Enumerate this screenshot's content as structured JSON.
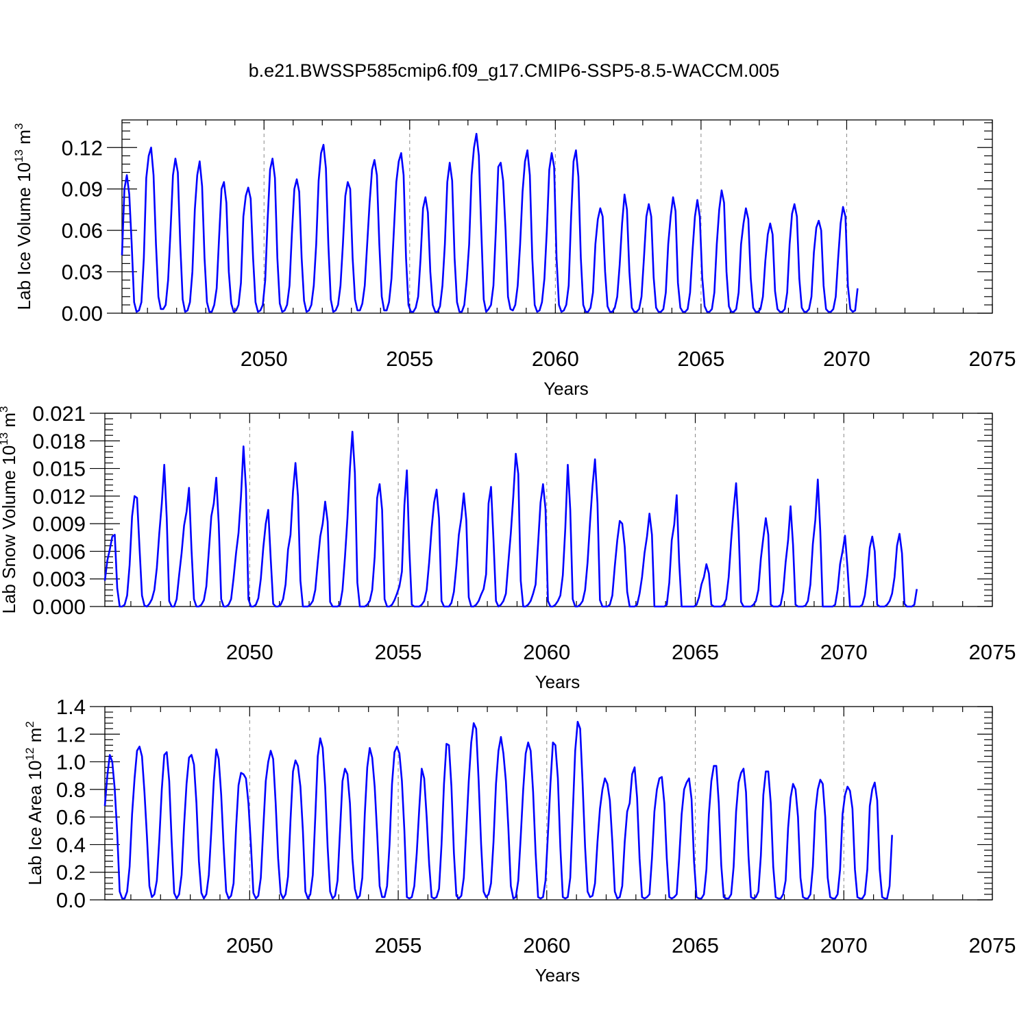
{
  "title": "b.e21.BWSSP585cmip6.f09_g17.CMIP6-SSP5-8.5-WACCM.005",
  "colors": {
    "line": "#0000ff",
    "axis": "#000000",
    "grid": "#888888"
  },
  "chart_data": [
    {
      "type": "line",
      "name": "ice-volume",
      "ylabel": "Lab Ice Volume 10",
      "ylabel_exp": "13",
      "ylabel_unit": " m",
      "ylabel_unit_exp": "3",
      "xlabel": "Years",
      "xlim": [
        2045.125,
        2075.0
      ],
      "ylim": [
        0.0,
        0.14
      ],
      "yticks": [
        0.0,
        0.03,
        0.06,
        0.09,
        0.12
      ],
      "ytick_labels": [
        "0.00",
        "0.03",
        "0.06",
        "0.09",
        "0.12"
      ],
      "xticks": [
        2050,
        2055,
        2060,
        2065,
        2070,
        2075
      ],
      "xtick_labels": [
        "2050",
        "2055",
        "2060",
        "2065",
        "2070",
        "2075"
      ],
      "start": 2045.125,
      "step": 0.08333,
      "values": [
        0.042,
        0.09,
        0.1,
        0.086,
        0.05,
        0.008,
        0.001,
        0.002,
        0.008,
        0.04,
        0.098,
        0.114,
        0.12,
        0.1,
        0.05,
        0.012,
        0.003,
        0.003,
        0.006,
        0.024,
        0.06,
        0.1,
        0.112,
        0.102,
        0.05,
        0.01,
        0.001,
        0.002,
        0.008,
        0.03,
        0.075,
        0.1,
        0.11,
        0.092,
        0.04,
        0.008,
        0.001,
        0.001,
        0.006,
        0.018,
        0.055,
        0.09,
        0.095,
        0.08,
        0.03,
        0.007,
        0.001,
        0.002,
        0.006,
        0.022,
        0.07,
        0.085,
        0.091,
        0.083,
        0.04,
        0.008,
        0.001,
        0.002,
        0.006,
        0.024,
        0.068,
        0.104,
        0.112,
        0.098,
        0.04,
        0.007,
        0.001,
        0.002,
        0.006,
        0.02,
        0.058,
        0.09,
        0.097,
        0.088,
        0.04,
        0.009,
        0.001,
        0.002,
        0.006,
        0.02,
        0.05,
        0.096,
        0.116,
        0.122,
        0.105,
        0.05,
        0.01,
        0.001,
        0.002,
        0.006,
        0.02,
        0.05,
        0.085,
        0.095,
        0.09,
        0.04,
        0.01,
        0.002,
        0.002,
        0.007,
        0.02,
        0.05,
        0.08,
        0.104,
        0.111,
        0.1,
        0.05,
        0.012,
        0.002,
        0.002,
        0.008,
        0.025,
        0.06,
        0.095,
        0.11,
        0.116,
        0.1,
        0.04,
        0.006,
        0.001,
        0.001,
        0.004,
        0.012,
        0.04,
        0.076,
        0.084,
        0.073,
        0.03,
        0.006,
        0.001,
        0.001,
        0.005,
        0.02,
        0.05,
        0.095,
        0.109,
        0.096,
        0.04,
        0.008,
        0.001,
        0.001,
        0.006,
        0.024,
        0.05,
        0.1,
        0.12,
        0.13,
        0.114,
        0.06,
        0.01,
        0.001,
        0.003,
        0.006,
        0.02,
        0.06,
        0.106,
        0.109,
        0.096,
        0.06,
        0.012,
        0.003,
        0.002,
        0.006,
        0.02,
        0.05,
        0.088,
        0.11,
        0.118,
        0.1,
        0.04,
        0.006,
        0.001,
        0.002,
        0.008,
        0.025,
        0.06,
        0.104,
        0.116,
        0.106,
        0.04,
        0.006,
        0.001,
        0.002,
        0.006,
        0.02,
        0.07,
        0.11,
        0.118,
        0.099,
        0.04,
        0.006,
        0.001,
        0.001,
        0.004,
        0.015,
        0.05,
        0.068,
        0.076,
        0.07,
        0.03,
        0.005,
        0.001,
        0.001,
        0.004,
        0.012,
        0.035,
        0.065,
        0.086,
        0.075,
        0.03,
        0.004,
        0.001,
        0.001,
        0.003,
        0.012,
        0.04,
        0.07,
        0.079,
        0.07,
        0.026,
        0.004,
        0.001,
        0.001,
        0.003,
        0.015,
        0.05,
        0.07,
        0.084,
        0.074,
        0.022,
        0.004,
        0.001,
        0.001,
        0.003,
        0.015,
        0.045,
        0.07,
        0.082,
        0.07,
        0.026,
        0.005,
        0.001,
        0.001,
        0.003,
        0.015,
        0.05,
        0.075,
        0.089,
        0.08,
        0.03,
        0.005,
        0.001,
        0.001,
        0.003,
        0.015,
        0.05,
        0.065,
        0.076,
        0.068,
        0.025,
        0.004,
        0.001,
        0.001,
        0.003,
        0.012,
        0.038,
        0.057,
        0.065,
        0.057,
        0.016,
        0.003,
        0.001,
        0.001,
        0.003,
        0.015,
        0.05,
        0.072,
        0.079,
        0.07,
        0.025,
        0.004,
        0.001,
        0.001,
        0.003,
        0.012,
        0.044,
        0.062,
        0.067,
        0.06,
        0.02,
        0.003,
        0.001,
        0.001,
        0.003,
        0.012,
        0.04,
        0.065,
        0.077,
        0.07,
        0.02,
        0.003,
        0.001,
        0.002,
        0.018
      ]
    },
    {
      "type": "line",
      "name": "snow-volume",
      "ylabel": "Lab Snow Volume 10",
      "ylabel_exp": "13",
      "ylabel_unit": " m",
      "ylabel_unit_exp": "3",
      "xlabel": "Years",
      "xlim": [
        2045.125,
        2075.0
      ],
      "ylim": [
        0.0,
        0.021
      ],
      "yticks": [
        0.0,
        0.003,
        0.006,
        0.009,
        0.012,
        0.015,
        0.018,
        0.021
      ],
      "ytick_labels": [
        "0.000",
        "0.003",
        "0.006",
        "0.009",
        "0.012",
        "0.015",
        "0.018",
        "0.021"
      ],
      "xticks": [
        2050,
        2055,
        2060,
        2065,
        2070,
        2075
      ],
      "xtick_labels": [
        "2050",
        "2055",
        "2060",
        "2065",
        "2070",
        "2075"
      ],
      "start": 2045.125,
      "step": 0.08333,
      "values": [
        0.0028,
        0.005,
        0.0062,
        0.0076,
        0.0078,
        0.002,
        0.0,
        0.0,
        0.0002,
        0.0012,
        0.0045,
        0.0098,
        0.012,
        0.0118,
        0.0064,
        0.0012,
        0.0001,
        0.0,
        0.0003,
        0.0008,
        0.0018,
        0.0042,
        0.008,
        0.0112,
        0.0154,
        0.0096,
        0.0006,
        0.0,
        0.0,
        0.0008,
        0.0034,
        0.0058,
        0.0088,
        0.0103,
        0.0129,
        0.0062,
        0.0008,
        0.0,
        0.0,
        0.0002,
        0.0007,
        0.0022,
        0.006,
        0.0098,
        0.0112,
        0.014,
        0.009,
        0.0008,
        0.0,
        0.0,
        0.0002,
        0.0008,
        0.0031,
        0.0058,
        0.008,
        0.012,
        0.0174,
        0.0128,
        0.0008,
        0.0,
        0.0,
        0.0002,
        0.0009,
        0.003,
        0.0064,
        0.009,
        0.0105,
        0.0052,
        0.0003,
        0.0,
        0.0,
        0.0002,
        0.0008,
        0.0024,
        0.0062,
        0.0078,
        0.0125,
        0.0156,
        0.012,
        0.0028,
        0.0,
        0.0,
        0.0,
        0.0002,
        0.0006,
        0.0018,
        0.0048,
        0.0076,
        0.009,
        0.0114,
        0.0092,
        0.0005,
        0.0,
        0.0,
        0.0,
        0.0002,
        0.0018,
        0.0054,
        0.0096,
        0.015,
        0.019,
        0.0145,
        0.0026,
        0.0,
        0.0,
        0.0,
        0.0002,
        0.0006,
        0.0018,
        0.0054,
        0.0118,
        0.0133,
        0.0105,
        0.0008,
        0.0,
        0.0,
        0.0002,
        0.0007,
        0.0014,
        0.0022,
        0.0038,
        0.011,
        0.0148,
        0.0062,
        0.0002,
        0.0,
        0.0,
        0.0,
        0.0002,
        0.0006,
        0.0018,
        0.0048,
        0.0085,
        0.0113,
        0.0127,
        0.0096,
        0.0006,
        0.0,
        0.0,
        0.0,
        0.0004,
        0.0016,
        0.0044,
        0.0078,
        0.0096,
        0.0123,
        0.0094,
        0.001,
        0.0,
        0.0,
        0.0002,
        0.0006,
        0.0013,
        0.0019,
        0.0035,
        0.0112,
        0.013,
        0.0072,
        0.0006,
        0.0,
        0.0002,
        0.0006,
        0.0014,
        0.0048,
        0.008,
        0.012,
        0.0166,
        0.0144,
        0.0028,
        0.0,
        0.0,
        0.0002,
        0.0006,
        0.0014,
        0.0024,
        0.0068,
        0.0113,
        0.0133,
        0.0106,
        0.0006,
        0.0,
        0.0,
        0.0002,
        0.0006,
        0.0012,
        0.0034,
        0.0085,
        0.0154,
        0.0105,
        0.0008,
        0.0,
        0.0,
        0.0002,
        0.0006,
        0.0018,
        0.0048,
        0.0092,
        0.0131,
        0.016,
        0.0112,
        0.0007,
        0.0,
        0.0,
        0.0,
        0.0002,
        0.0012,
        0.0044,
        0.0072,
        0.0093,
        0.009,
        0.0065,
        0.0016,
        0.0,
        0.0,
        0.0,
        0.0002,
        0.0014,
        0.0032,
        0.0058,
        0.0076,
        0.0101,
        0.0078,
        0.0,
        0.0,
        0.0,
        0.0,
        0.0,
        0.0002,
        0.0026,
        0.0072,
        0.0089,
        0.0121,
        0.0048,
        0.0,
        0.0,
        0.0,
        0.0,
        0.0,
        0.0,
        0.0002,
        0.001,
        0.0024,
        0.0032,
        0.0046,
        0.0036,
        0.0002,
        0.0,
        0.0,
        0.0,
        0.0,
        0.0002,
        0.0008,
        0.0032,
        0.0072,
        0.0106,
        0.0134,
        0.0085,
        0.0005,
        0.0,
        0.0,
        0.0,
        0.0,
        0.0002,
        0.0006,
        0.0018,
        0.0052,
        0.0075,
        0.0096,
        0.0078,
        0.0002,
        0.0,
        0.0,
        0.0,
        0.0002,
        0.0016,
        0.0048,
        0.0072,
        0.0109,
        0.0067,
        0.0002,
        0.0,
        0.0,
        0.0,
        0.0001,
        0.0006,
        0.0024,
        0.0068,
        0.0094,
        0.0138,
        0.0082,
        0.0,
        0.0,
        0.0,
        0.0,
        0.0,
        0.0002,
        0.0018,
        0.0046,
        0.006,
        0.0077,
        0.0042,
        0.0,
        0.0,
        0.0,
        0.0,
        0.0,
        0.0002,
        0.0012,
        0.0034,
        0.0064,
        0.0076,
        0.006,
        0.0002,
        0.0,
        0.0,
        0.0,
        0.0002,
        0.0006,
        0.0014,
        0.0032,
        0.0066,
        0.0079,
        0.0058,
        0.0003,
        0.0,
        0.0,
        0.0,
        0.0002,
        0.0019
      ]
    },
    {
      "type": "line",
      "name": "ice-area",
      "ylabel": "Lab Ice Area 10",
      "ylabel_exp": "12",
      "ylabel_unit": " m",
      "ylabel_unit_exp": "2",
      "xlabel": "Years",
      "xlim": [
        2045.125,
        2075.0
      ],
      "ylim": [
        0.0,
        1.4
      ],
      "yticks": [
        0.0,
        0.2,
        0.4,
        0.6,
        0.8,
        1.0,
        1.2,
        1.4
      ],
      "ytick_labels": [
        "0.0",
        "0.2",
        "0.4",
        "0.6",
        "0.8",
        "1.0",
        "1.2",
        "1.4"
      ],
      "xticks": [
        2050,
        2055,
        2060,
        2065,
        2070,
        2075
      ],
      "xtick_labels": [
        "2050",
        "2055",
        "2060",
        "2065",
        "2070",
        "2075"
      ],
      "start": 2045.125,
      "step": 0.08333,
      "values": [
        0.68,
        0.9,
        1.05,
        1.0,
        0.8,
        0.48,
        0.06,
        0.01,
        0.01,
        0.06,
        0.24,
        0.62,
        0.88,
        1.08,
        1.11,
        1.04,
        0.78,
        0.46,
        0.1,
        0.02,
        0.04,
        0.14,
        0.44,
        0.8,
        1.05,
        1.07,
        0.86,
        0.42,
        0.05,
        0.01,
        0.04,
        0.18,
        0.54,
        0.84,
        1.03,
        1.05,
        0.98,
        0.7,
        0.28,
        0.05,
        0.01,
        0.04,
        0.18,
        0.5,
        0.86,
        1.09,
        1.02,
        0.76,
        0.38,
        0.06,
        0.01,
        0.03,
        0.12,
        0.52,
        0.83,
        0.92,
        0.91,
        0.88,
        0.7,
        0.4,
        0.05,
        0.01,
        0.03,
        0.16,
        0.52,
        0.86,
        1.0,
        1.08,
        1.02,
        0.7,
        0.3,
        0.05,
        0.01,
        0.04,
        0.17,
        0.58,
        0.93,
        1.01,
        0.97,
        0.82,
        0.5,
        0.06,
        0.01,
        0.04,
        0.18,
        0.6,
        1.04,
        1.17,
        1.1,
        0.82,
        0.38,
        0.06,
        0.01,
        0.03,
        0.14,
        0.5,
        0.86,
        0.95,
        0.91,
        0.7,
        0.3,
        0.08,
        0.01,
        0.03,
        0.16,
        0.62,
        0.96,
        1.1,
        1.03,
        0.82,
        0.48,
        0.1,
        0.02,
        0.02,
        0.1,
        0.4,
        0.84,
        1.07,
        1.11,
        1.06,
        0.86,
        0.5,
        0.02,
        0.01,
        0.02,
        0.1,
        0.34,
        0.66,
        0.95,
        0.88,
        0.6,
        0.26,
        0.02,
        0.01,
        0.02,
        0.08,
        0.4,
        0.84,
        1.13,
        1.12,
        0.82,
        0.34,
        0.03,
        0.01,
        0.03,
        0.16,
        0.5,
        0.86,
        1.14,
        1.28,
        1.24,
        0.86,
        0.4,
        0.06,
        0.02,
        0.04,
        0.12,
        0.42,
        0.84,
        1.08,
        1.18,
        1.06,
        0.86,
        0.52,
        0.1,
        0.01,
        0.02,
        0.14,
        0.46,
        0.8,
        1.06,
        1.14,
        1.08,
        0.78,
        0.34,
        0.02,
        0.01,
        0.02,
        0.14,
        0.48,
        0.84,
        1.14,
        1.12,
        0.88,
        0.38,
        0.02,
        0.01,
        0.02,
        0.16,
        0.62,
        1.08,
        1.29,
        1.24,
        0.84,
        0.38,
        0.06,
        0.02,
        0.03,
        0.12,
        0.42,
        0.66,
        0.8,
        0.88,
        0.84,
        0.72,
        0.42,
        0.06,
        0.01,
        0.02,
        0.1,
        0.42,
        0.64,
        0.7,
        0.91,
        0.96,
        0.74,
        0.3,
        0.02,
        0.01,
        0.02,
        0.04,
        0.3,
        0.64,
        0.8,
        0.88,
        0.89,
        0.7,
        0.3,
        0.02,
        0.01,
        0.02,
        0.04,
        0.3,
        0.62,
        0.8,
        0.85,
        0.88,
        0.73,
        0.28,
        0.02,
        0.01,
        0.01,
        0.04,
        0.22,
        0.62,
        0.86,
        0.97,
        0.97,
        0.7,
        0.25,
        0.02,
        0.01,
        0.01,
        0.04,
        0.24,
        0.64,
        0.85,
        0.92,
        0.95,
        0.78,
        0.32,
        0.02,
        0.01,
        0.02,
        0.06,
        0.32,
        0.76,
        0.93,
        0.93,
        0.7,
        0.24,
        0.02,
        0.01,
        0.01,
        0.04,
        0.14,
        0.52,
        0.74,
        0.84,
        0.8,
        0.6,
        0.16,
        0.02,
        0.01,
        0.01,
        0.04,
        0.24,
        0.64,
        0.8,
        0.87,
        0.84,
        0.6,
        0.16,
        0.02,
        0.01,
        0.01,
        0.04,
        0.22,
        0.62,
        0.76,
        0.82,
        0.79,
        0.66,
        0.22,
        0.02,
        0.01,
        0.01,
        0.04,
        0.22,
        0.68,
        0.8,
        0.85,
        0.72,
        0.22,
        0.02,
        0.01,
        0.01,
        0.1,
        0.47
      ]
    }
  ]
}
